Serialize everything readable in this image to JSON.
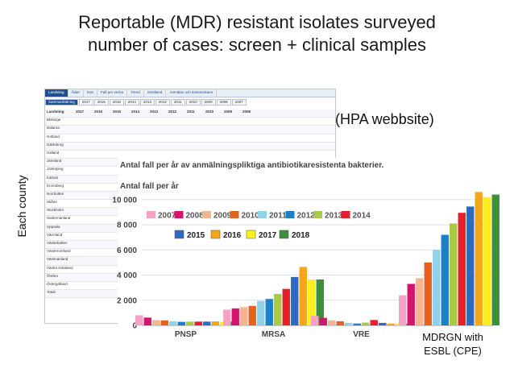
{
  "slide": {
    "title_line1": "Reportable (MDR) resistant isolates surveyed",
    "title_line2": "number of cases: screen + clinical samples",
    "side_label": "Each county",
    "source_note": "(HPA webbsite)",
    "mdrgn_line1": "MDRGN with",
    "mdrgn_line2": "ESBL (CPE)"
  },
  "table": {
    "tabs": [
      "Landsting",
      "Ålder",
      "Kön",
      "Fall per vecka",
      "Trend",
      "Smittland",
      "Anmälan och kommentarer"
    ],
    "year_tabs": [
      "Sammanfattning",
      "2017",
      "2016",
      "2015",
      "2014",
      "2013",
      "2012",
      "2011",
      "2010",
      "2009",
      "2008",
      "2007"
    ],
    "header": [
      "Landsting",
      "2017",
      "2016",
      "2015",
      "2014",
      "2013",
      "2012",
      "2011",
      "2010",
      "2009",
      "2008"
    ],
    "counties": [
      "Blekinge",
      "Dalarna",
      "Gotland",
      "Gävleborg",
      "Halland",
      "Jämtland",
      "Jönköping",
      "Kalmar",
      "Kronoberg",
      "Norrbotten",
      "Skåne",
      "Stockholm",
      "Södermanland",
      "Uppsala",
      "Värmland",
      "Västerbotten",
      "Västernorrland",
      "Västmanland",
      "Västra Götaland",
      "Örebro",
      "Östergötland",
      "Totalt"
    ]
  },
  "chart_data": {
    "type": "bar",
    "title": "Antal fall per år av anmälningspliktiga antibiotikaresistenta bakterier.",
    "ylabel": "Antal fall per år",
    "categories": [
      "PNSP",
      "MRSA",
      "VRE",
      "MDRGN with ESBL (CPE)"
    ],
    "category_labels": [
      "PNSP",
      "MRSA",
      "VRE",
      ""
    ],
    "ylim": [
      0,
      10500
    ],
    "yticks": [
      0,
      2000,
      4000,
      6000,
      8000,
      10000
    ],
    "ytick_labels": [
      "0",
      "2 000",
      "4 000",
      "6 000",
      "8 000",
      "10 000"
    ],
    "grid": true,
    "legend_placement": "top-left",
    "series": [
      {
        "name": "2007",
        "color": "#f4a3c6",
        "values": [
          800,
          1250,
          750,
          2400
        ]
      },
      {
        "name": "2008",
        "color": "#d6146e",
        "values": [
          620,
          1350,
          600,
          3300
        ]
      },
      {
        "name": "2009",
        "color": "#f6b48f",
        "values": [
          420,
          1450,
          400,
          3750
        ]
      },
      {
        "name": "2010",
        "color": "#e6621f",
        "values": [
          400,
          1550,
          330,
          5000
        ]
      },
      {
        "name": "2011",
        "color": "#8ed2ec",
        "values": [
          330,
          1950,
          200,
          6000
        ]
      },
      {
        "name": "2012",
        "color": "#1c7fc7",
        "values": [
          280,
          2100,
          150,
          7200
        ]
      },
      {
        "name": "2013",
        "color": "#a9c948",
        "values": [
          300,
          2500,
          220,
          8100
        ]
      },
      {
        "name": "2014",
        "color": "#e4202d",
        "values": [
          300,
          2900,
          430,
          8950
        ]
      },
      {
        "name": "2015",
        "color": "#2e69c2",
        "values": [
          300,
          3850,
          200,
          9450
        ]
      },
      {
        "name": "2016",
        "color": "#f5a516",
        "values": [
          320,
          4650,
          150,
          10600
        ]
      },
      {
        "name": "2017",
        "color": "#ffee1e",
        "values": [
          280,
          3650,
          150,
          10200
        ]
      },
      {
        "name": "2018",
        "color": "#3c8f3c",
        "values": [
          300,
          3650,
          150,
          10400
        ]
      }
    ]
  }
}
